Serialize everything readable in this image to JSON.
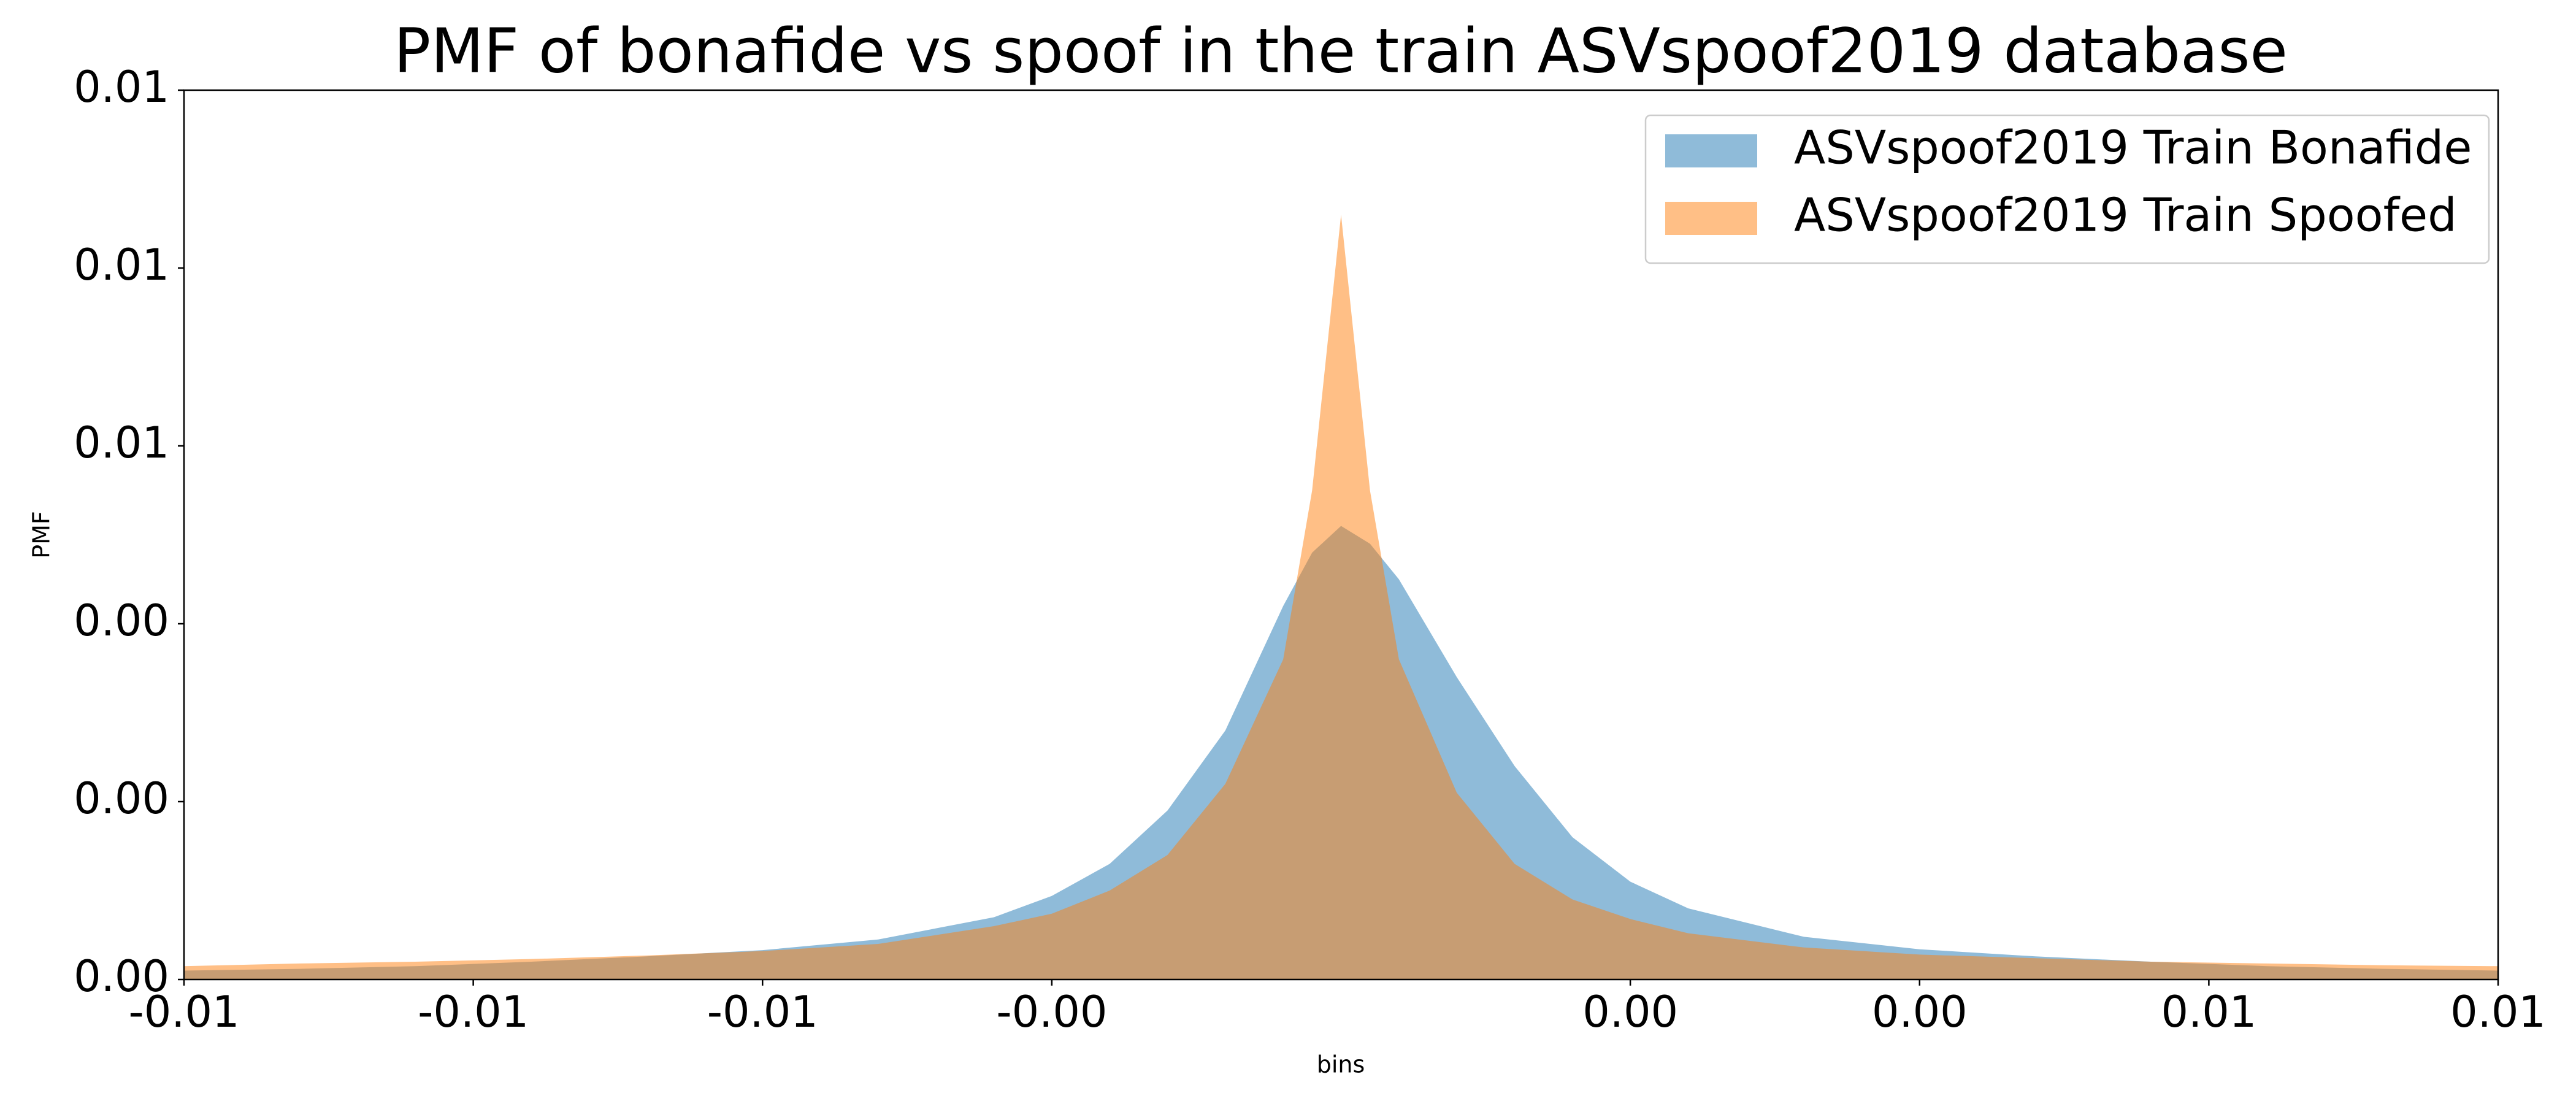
{
  "chart_data": {
    "type": "area",
    "title": "PMF of bonafide vs spoof in the train ASVspoof2019 database",
    "x_label": "bins",
    "y_label": "PMF",
    "x": [
      -0.01,
      -0.009,
      -0.008,
      -0.007,
      -0.006,
      -0.005,
      -0.004,
      -0.003,
      -0.0025,
      -0.002,
      -0.0015,
      -0.001,
      -0.0005,
      -0.00025,
      0,
      0.00025,
      0.0005,
      0.001,
      0.0015,
      0.002,
      0.0025,
      0.003,
      0.004,
      0.005,
      0.006,
      0.007,
      0.008,
      0.009,
      0.01
    ],
    "series": [
      {
        "name": "ASVspoof2019 Train Bonafide",
        "color": "#1f77b4",
        "values": [
          0.0001,
          0.00012,
          0.00015,
          0.0002,
          0.00026,
          0.00033,
          0.00045,
          0.0007,
          0.00094,
          0.0013,
          0.0019,
          0.0028,
          0.0042,
          0.0048,
          0.0051,
          0.0049,
          0.0045,
          0.0034,
          0.0024,
          0.0016,
          0.0011,
          0.0008,
          0.00048,
          0.00034,
          0.00026,
          0.0002,
          0.00015,
          0.00012,
          0.0001
        ]
      },
      {
        "name": "ASVspoof2019 Train Spoofed",
        "color": "#ff7f0e",
        "values": [
          0.00015,
          0.00018,
          0.0002,
          0.00023,
          0.00027,
          0.00032,
          0.0004,
          0.0006,
          0.00074,
          0.001,
          0.0014,
          0.0022,
          0.0036,
          0.0055,
          0.0086,
          0.0055,
          0.0036,
          0.0021,
          0.0013,
          0.0009,
          0.00068,
          0.00052,
          0.00036,
          0.00028,
          0.00024,
          0.0002,
          0.00018,
          0.00016,
          0.00015
        ]
      }
    ],
    "alpha": 0.5,
    "xlim": [
      -0.01,
      0.01
    ],
    "xticks": [
      {
        "value": -0.01,
        "label": "-0.01"
      },
      {
        "value": -0.0075,
        "label": "-0.01"
      },
      {
        "value": -0.005,
        "label": "-0.01"
      },
      {
        "value": -0.0025,
        "label": "-0.00"
      },
      {
        "value": 0.0025,
        "label": "0.00"
      },
      {
        "value": 0.005,
        "label": "0.00"
      },
      {
        "value": 0.0075,
        "label": "0.01"
      },
      {
        "value": 0.01,
        "label": "0.01"
      }
    ],
    "ylim": [
      0,
      0.01
    ],
    "yticks": [
      {
        "value": 0,
        "label": "0.00"
      },
      {
        "value": 0.002,
        "label": "0.00"
      },
      {
        "value": 0.004,
        "label": "0.00"
      },
      {
        "value": 0.006,
        "label": "0.01"
      },
      {
        "value": 0.008,
        "label": "0.01"
      },
      {
        "value": 0.01,
        "label": "0.01"
      }
    ],
    "legend": "upper right"
  }
}
